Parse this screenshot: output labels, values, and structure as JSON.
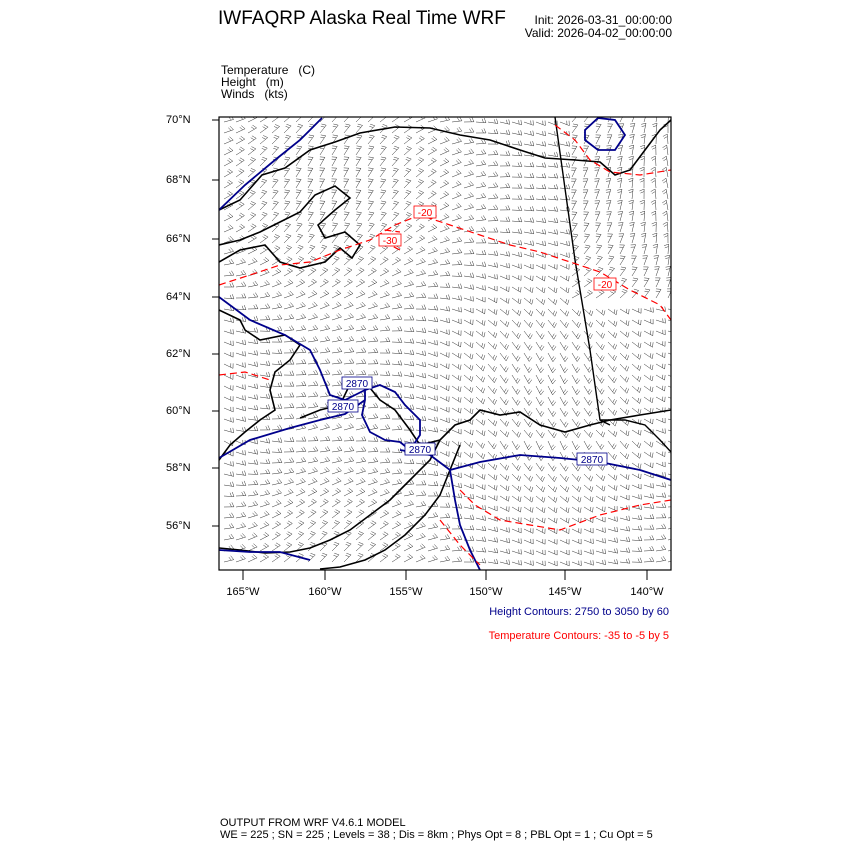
{
  "header": {
    "title": "IWFAQRP Alaska Real Time WRF",
    "init": "Init: 2026-03-31_00:00:00",
    "valid": "Valid: 2026-04-02_00:00:00"
  },
  "fields": [
    {
      "name": "Temperature",
      "unit": "(C)"
    },
    {
      "name": "Height",
      "unit": "(m)"
    },
    {
      "name": "Winds",
      "unit": "(kts)"
    }
  ],
  "map": {
    "lat_ticks": [
      "70°N",
      "68°N",
      "66°N",
      "64°N",
      "62°N",
      "60°N",
      "58°N",
      "56°N"
    ],
    "lon_ticks": [
      "165°W",
      "160°W",
      "155°W",
      "150°W",
      "145°W",
      "140°W"
    ],
    "height_labels": [
      "2870",
      "2870",
      "2870",
      "2870"
    ],
    "temp_labels": [
      "-30",
      "-20",
      "-20"
    ],
    "colors": {
      "height": "#00008b",
      "temperature": "#ff0000",
      "coast": "#000000",
      "barbs": "#333333"
    }
  },
  "legend": {
    "height": "Height Contours: 2750 to 3050 by 60",
    "temperature": "Temperature Contours: -35 to -5 by 5"
  },
  "footer": {
    "line1": "OUTPUT FROM WRF V4.6.1 MODEL",
    "line2": "WE = 225 ; SN = 225 ; Levels = 38 ; Dis = 8km ; Phys Opt = 8 ; PBL Opt = 1 ; Cu Opt = 5"
  }
}
